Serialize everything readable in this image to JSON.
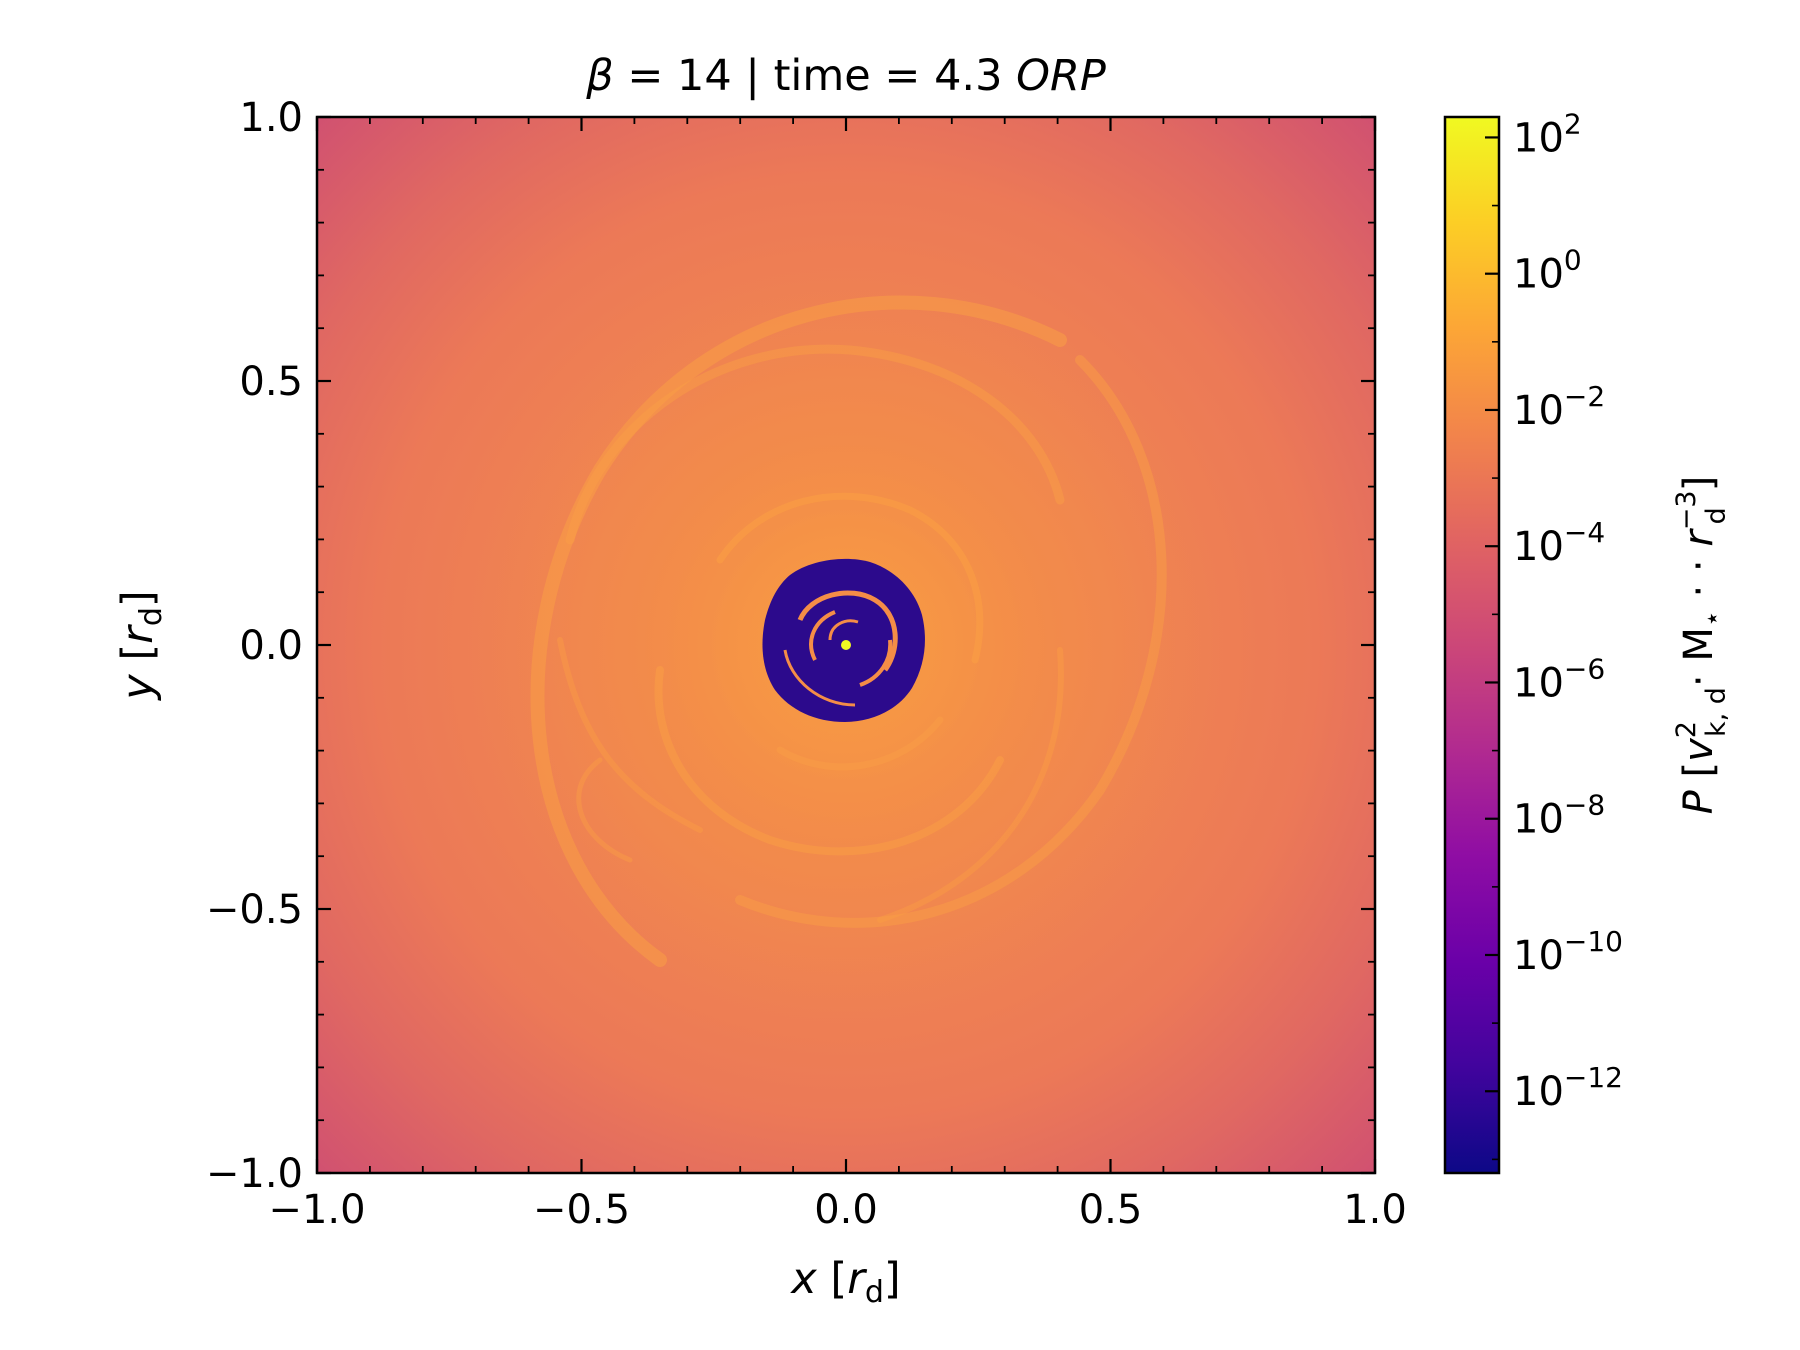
{
  "chart_data": {
    "type": "heatmap",
    "title_parts": {
      "beta_symbol": "β",
      "main": " = 14 | time = 4.3 ",
      "unit": "ORP"
    },
    "xlabel": {
      "var": "x",
      "open": " [",
      "sub_var": "r",
      "sub": "d",
      "close": "]"
    },
    "ylabel": {
      "var": "y",
      "open": " [",
      "sub_var": "r",
      "sub": "d",
      "close": "]"
    },
    "xlim": [
      -1.0,
      1.0
    ],
    "ylim": [
      -1.0,
      1.0
    ],
    "x_ticks": [
      {
        "value": -1.0,
        "label": "−1.0"
      },
      {
        "value": -0.5,
        "label": "−0.5"
      },
      {
        "value": 0.0,
        "label": "0.0"
      },
      {
        "value": 0.5,
        "label": "0.5"
      },
      {
        "value": 1.0,
        "label": "1.0"
      }
    ],
    "y_ticks": [
      {
        "value": -1.0,
        "label": "−1.0"
      },
      {
        "value": -0.5,
        "label": "−0.5"
      },
      {
        "value": 0.0,
        "label": "0.0"
      },
      {
        "value": 0.5,
        "label": "0.5"
      },
      {
        "value": 1.0,
        "label": "1.0"
      }
    ],
    "colorbar": {
      "colormap": "plasma",
      "scale": "log",
      "range_log10": [
        -13.2,
        2.3
      ],
      "ticks": [
        {
          "value": 2,
          "base": "10",
          "exp": "2"
        },
        {
          "value": 0,
          "base": "10",
          "exp": "0"
        },
        {
          "value": -2,
          "base": "10",
          "exp": "−2"
        },
        {
          "value": -4,
          "base": "10",
          "exp": "−4"
        },
        {
          "value": -6,
          "base": "10",
          "exp": "−6"
        },
        {
          "value": -8,
          "base": "10",
          "exp": "−8"
        },
        {
          "value": -10,
          "base": "10",
          "exp": "−10"
        },
        {
          "value": -12,
          "base": "10",
          "exp": "−12"
        }
      ],
      "label": {
        "var": "P",
        "open": " [",
        "v": "v",
        "v_sup": "2",
        "v_sub": "k, d",
        "mid": "· M",
        "m_sub": "⋆",
        "mid2": " · · ",
        "r": "r",
        "r_sup": "−3",
        "r_sub": "d",
        "close": "]"
      }
    },
    "field_description_log10": {
      "corner_value": -5.0,
      "disk_value": -2.5,
      "spiral_arm_value": -1.3,
      "inner_cavity_value": -13.0,
      "inner_cavity_radius": 0.14,
      "central_point_value": 1.5
    }
  },
  "colors": {
    "plasma_stops": [
      "#0d0887",
      "#41049d",
      "#6a00a8",
      "#8f0da4",
      "#b12a90",
      "#cc4778",
      "#e16462",
      "#f2844b",
      "#fca636",
      "#fcce25",
      "#f0f921"
    ],
    "disk": "#ee7d55",
    "corner": "#d85a6d",
    "arm": "#f9a347",
    "cavity": "#2c0a8c",
    "core": "#f0f921"
  }
}
